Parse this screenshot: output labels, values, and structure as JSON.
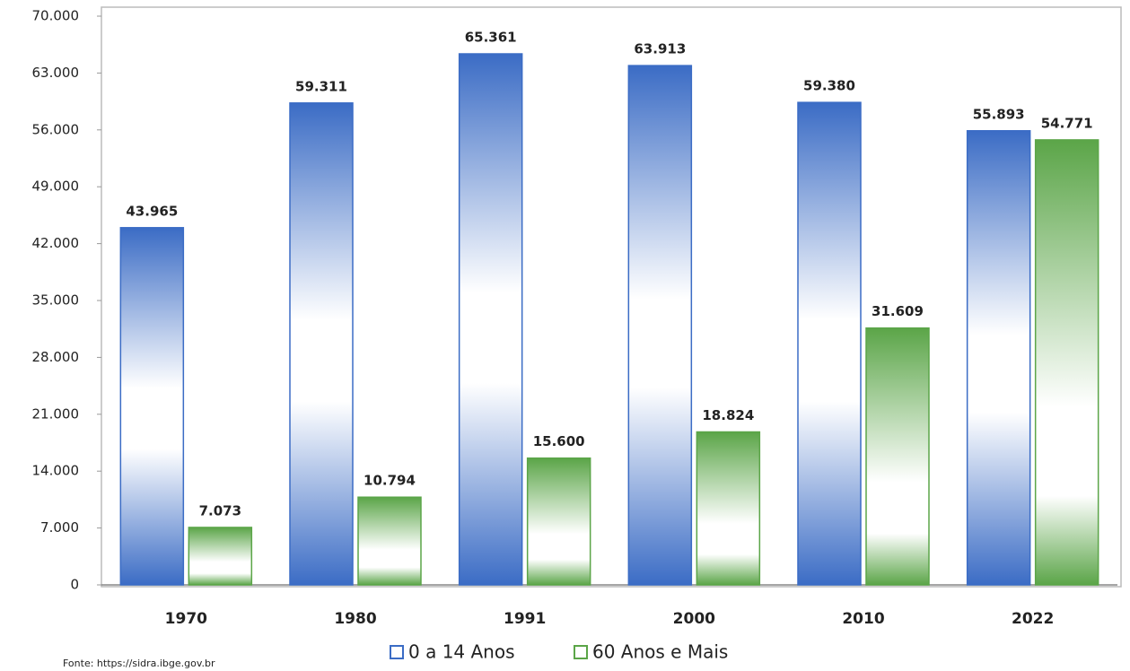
{
  "chart_data": {
    "type": "bar",
    "categories": [
      "1970",
      "1980",
      "1991",
      "2000",
      "2010",
      "2022"
    ],
    "series": [
      {
        "name": "0 a 14 Anos",
        "color": "#3b6cc5",
        "values": [
          43965,
          59311,
          65361,
          63913,
          59380,
          55893
        ],
        "value_labels": [
          "43.965",
          "59.311",
          "65.361",
          "63.913",
          "59.380",
          "55.893"
        ]
      },
      {
        "name": "60 Anos e Mais",
        "color": "#5ba548",
        "values": [
          7073,
          10794,
          15600,
          18824,
          31609,
          54771
        ],
        "value_labels": [
          "7.073",
          "10.794",
          "15.600",
          "18.824",
          "31.609",
          "54.771"
        ]
      }
    ],
    "ylim": [
      0,
      70000
    ],
    "yticks": [
      0,
      {
        "value": 7000,
        "label": "7.000"
      },
      {
        "value": 14000,
        "label": "14.000"
      },
      {
        "value": 21000,
        "label": "21.000"
      },
      {
        "value": 28000,
        "label": "28.000"
      },
      {
        "value": 35000,
        "label": "35.000"
      },
      {
        "value": 42000,
        "label": "42.000"
      },
      {
        "value": 49000,
        "label": "49.000"
      },
      {
        "value": 56000,
        "label": "56.000"
      },
      {
        "value": 63000,
        "label": "63.000"
      },
      {
        "value": 70000,
        "label": "70.000"
      }
    ],
    "grid": false,
    "legend": "bottom",
    "source": "Fonte: https://sidra.ibge.gov.br"
  }
}
